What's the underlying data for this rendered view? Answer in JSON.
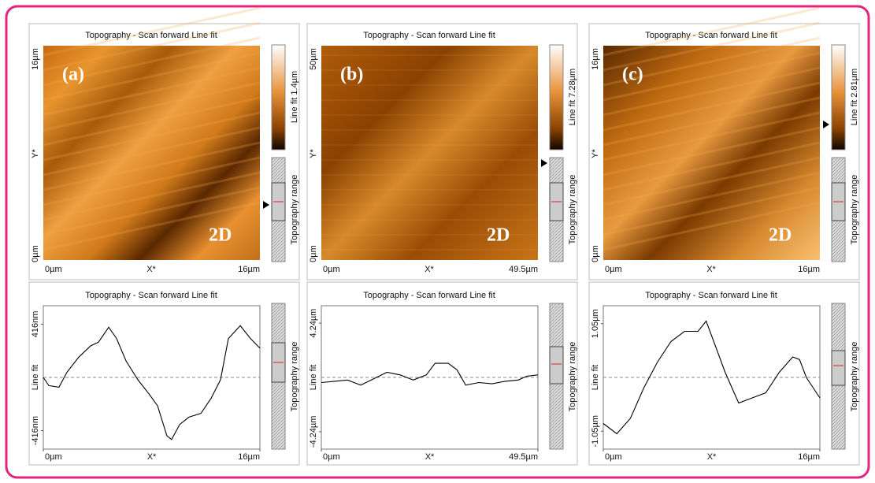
{
  "image_panels": [
    {
      "title": "Topography - Scan forward   Line fit",
      "label": "(a)",
      "mode": "2D",
      "y_axis": [
        "16µm",
        "Y*",
        "0µm"
      ],
      "x_axis": [
        "0µm",
        "X*",
        "16µm"
      ],
      "colorbar": "Line fit 1.4µm",
      "range_label": "Topography range"
    },
    {
      "title": "Topography - Scan forward   Line fit",
      "label": "(b)",
      "mode": "2D",
      "y_axis": [
        "50µm",
        "Y*",
        "0µm"
      ],
      "x_axis": [
        "0µm",
        "X*",
        "49.5µm"
      ],
      "colorbar": "Line fit 7.28µm",
      "range_label": "Topography range"
    },
    {
      "title": "Topography - Scan forward   Line fit",
      "label": "(c)",
      "mode": "2D",
      "y_axis": [
        "16µm",
        "Y*",
        "0µm"
      ],
      "x_axis": [
        "0µm",
        "X*",
        "16µm"
      ],
      "colorbar": "Line fit 2.81µm",
      "range_label": "Topography range"
    }
  ],
  "chart_data": [
    {
      "type": "line",
      "title": "Topography - Scan forward   Line fit",
      "xlabel": "X*",
      "ylabel": "Line fit",
      "side_label": "Topography range",
      "x": [
        0,
        0.41,
        1.16,
        1.75,
        2.62,
        3.49,
        4.07,
        4.83,
        5.41,
        6.11,
        6.98,
        7.85,
        8.44,
        9.13,
        9.48,
        10.07,
        10.76,
        11.64,
        12.39,
        13.09,
        13.67,
        14.55,
        15.3,
        16
      ],
      "series": [
        {
          "color": "#000000",
          "values": [
            0,
            -64,
            -76,
            41,
            158,
            246,
            275,
            392,
            304,
            129,
            -18,
            -135,
            -222,
            -456,
            -485,
            -368,
            -310,
            -281,
            -164,
            -18,
            304,
            404,
            304,
            228
          ]
        }
      ],
      "xlim": [
        0,
        16
      ],
      "ylim": [
        -560,
        560
      ],
      "xticks": [
        {
          "value": 0,
          "label": "0µm"
        },
        {
          "value": 16,
          "label": "16µm"
        }
      ],
      "yticks": [
        {
          "value": -416,
          "label": "-416nm"
        },
        {
          "value": 416,
          "label": "416nm"
        }
      ]
    },
    {
      "type": "line",
      "title": "Topography - Scan forward   Line fit",
      "xlabel": "X*",
      "ylabel": "Line fit",
      "side_label": "Topography range",
      "x": [
        0,
        3,
        6,
        9,
        12,
        15,
        18,
        21,
        24,
        26,
        29,
        31,
        33,
        36,
        39,
        42,
        45,
        47,
        49.5
      ],
      "series": [
        {
          "color": "#000000",
          "values": [
            -0.4,
            -0.3,
            -0.2,
            -0.6,
            -0.1,
            0.4,
            0.2,
            -0.2,
            0.2,
            1.1,
            1.1,
            0.6,
            -0.6,
            -0.4,
            -0.5,
            -0.3,
            -0.2,
            0.1,
            0.2
          ]
        }
      ],
      "xlim": [
        0,
        49.5
      ],
      "ylim": [
        -5.6,
        5.6
      ],
      "xticks": [
        {
          "value": 0,
          "label": "0µm"
        },
        {
          "value": 49.5,
          "label": "49.5µm"
        }
      ],
      "yticks": [
        {
          "value": -4.24,
          "label": "-4.24µm"
        },
        {
          "value": 4.24,
          "label": "4.24µm"
        }
      ]
    },
    {
      "type": "line",
      "title": "Topography - Scan forward   Line fit",
      "xlabel": "X*",
      "ylabel": "Line fit",
      "side_label": "Topography range",
      "x": [
        0,
        1,
        2,
        3,
        4,
        5,
        6,
        7,
        7.6,
        8.3,
        9,
        10,
        11,
        12,
        13,
        14,
        14.5,
        15,
        16
      ],
      "series": [
        {
          "color": "#000000",
          "values": [
            -0.9,
            -1.1,
            -0.8,
            -0.2,
            0.3,
            0.7,
            0.9,
            0.9,
            1.1,
            0.6,
            0.1,
            -0.5,
            -0.4,
            -0.3,
            0.1,
            0.4,
            0.35,
            0.0,
            -0.4
          ]
        }
      ],
      "xlim": [
        0,
        16
      ],
      "ylim": [
        -1.4,
        1.4
      ],
      "xticks": [
        {
          "value": 0,
          "label": "0µm"
        },
        {
          "value": 16,
          "label": "16µm"
        }
      ],
      "yticks": [
        {
          "value": -1.05,
          "label": "-1.05µm"
        },
        {
          "value": 1.05,
          "label": "1.05µm"
        }
      ]
    }
  ]
}
